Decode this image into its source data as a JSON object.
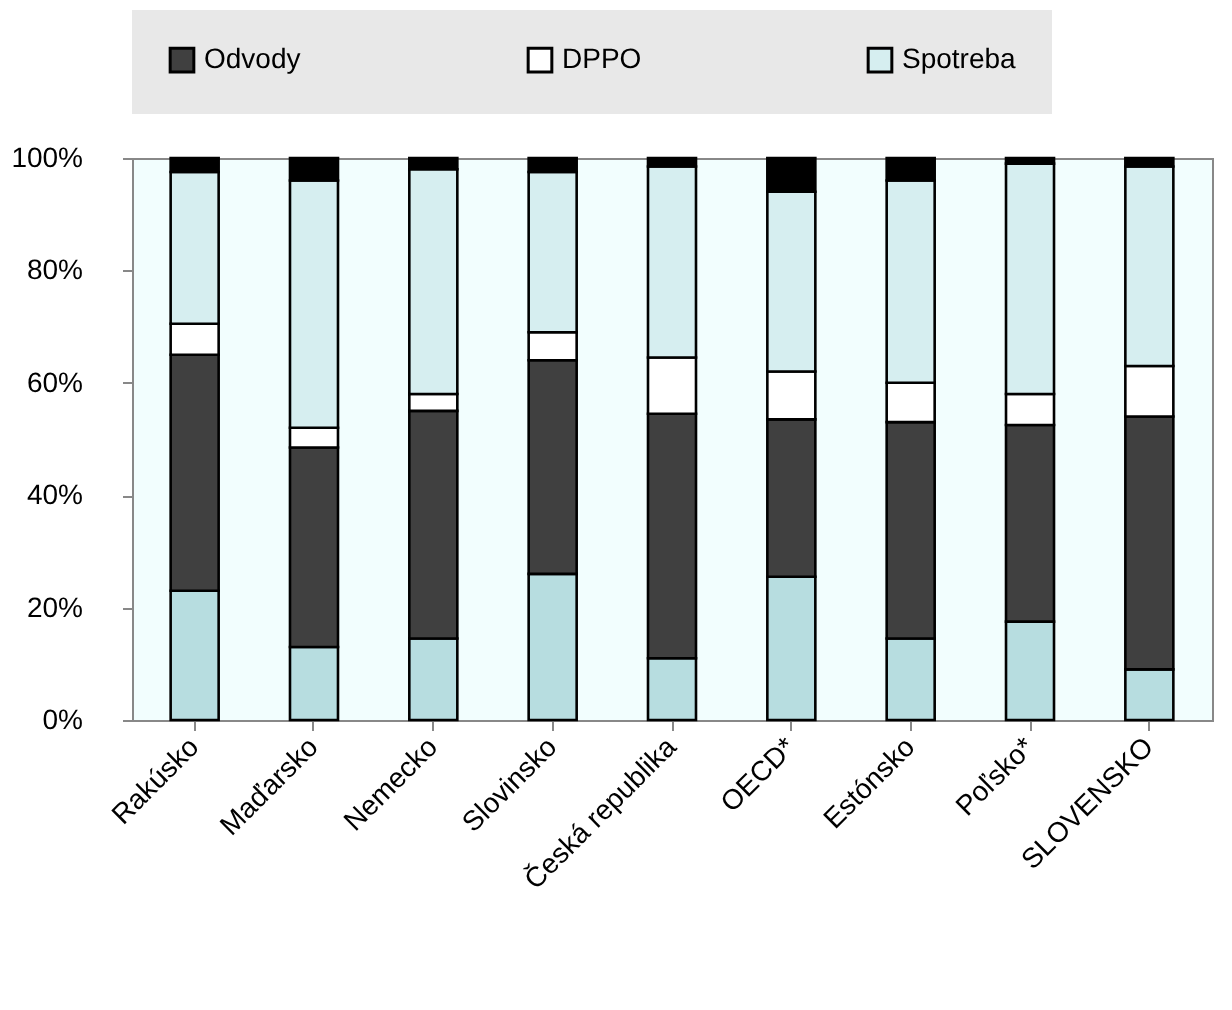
{
  "chart_data": {
    "type": "bar",
    "stacked": true,
    "legend": "top",
    "grid": false,
    "categories": [
      "Rakúsko",
      "Maďarsko",
      "Nemecko",
      "Slovinsko",
      "Česká republika",
      "OECD*",
      "Estónsko",
      "Poľsko*",
      "SLOVENSKO"
    ],
    "ylim": [
      0,
      100
    ],
    "yticks": [
      {
        "value": 0,
        "label": "0%"
      },
      {
        "value": 20,
        "label": "20%"
      },
      {
        "value": 40,
        "label": "40%"
      },
      {
        "value": 60,
        "label": "60%"
      },
      {
        "value": 80,
        "label": "80%"
      },
      {
        "value": 100,
        "label": "100%"
      }
    ],
    "series": [
      {
        "color": "#b7dde0",
        "values": [
          23,
          13,
          14.5,
          26,
          11,
          25.5,
          14.5,
          17.5,
          9
        ]
      },
      {
        "name": "Odvody",
        "color": "#404040",
        "values": [
          42,
          35.5,
          40.5,
          38,
          43.5,
          28,
          38.5,
          35,
          45
        ]
      },
      {
        "name": "DPPO",
        "color": "#ffffff",
        "values": [
          5.5,
          3.5,
          3,
          5,
          10,
          8.5,
          7,
          5.5,
          9
        ]
      },
      {
        "name": "Spotreba",
        "color": "#d6eef0",
        "values": [
          27,
          44,
          40,
          28.5,
          34,
          32,
          36,
          41,
          35.5
        ]
      },
      {
        "color": "#000000",
        "values": [
          2.5,
          4,
          2,
          2.5,
          1.5,
          6,
          4,
          1,
          1.5
        ]
      }
    ]
  }
}
